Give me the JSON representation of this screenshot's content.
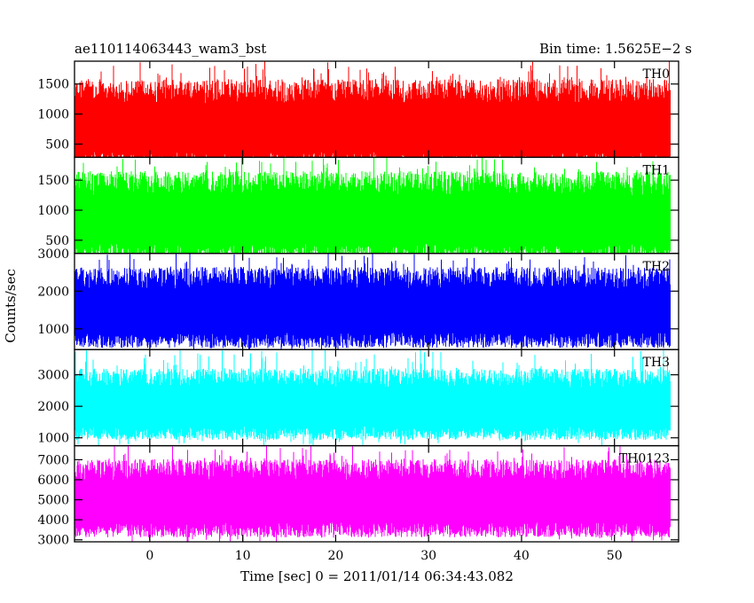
{
  "chart_data": {
    "type": "line",
    "title_left": "ae110114063443_wam3_bst",
    "title_right": "Bin time: 1.5625E−2 s",
    "xlabel": "Time [sec] 0 = 2011/01/14 06:34:43.082",
    "ylabel": "Counts/sec",
    "xlim": [
      -8.1,
      56.9
    ],
    "data_x_range": [
      -8.0,
      56.0
    ],
    "xticks": [
      0,
      10,
      20,
      30,
      40,
      50
    ],
    "grid": false,
    "panels": [
      {
        "name": "TH0",
        "color": "#ff0000",
        "ylim": [
          280,
          1880
        ],
        "yticks": [
          500,
          1000,
          1500
        ],
        "band": [
          230,
          1380
        ],
        "mean": 780,
        "spike_max": 1880
      },
      {
        "name": "TH1",
        "color": "#00ff00",
        "ylim": [
          280,
          1880
        ],
        "yticks": [
          500,
          1000,
          1500
        ],
        "band": [
          300,
          1450
        ],
        "mean": 880,
        "spike_max": 1880
      },
      {
        "name": "TH2",
        "color": "#0000ff",
        "ylim": [
          450,
          3000
        ],
        "yticks": [
          1000,
          2000,
          3000
        ],
        "band": [
          700,
          2350
        ],
        "mean": 1500,
        "spike_max": 3000
      },
      {
        "name": "TH3",
        "color": "#00ffff",
        "ylim": [
          750,
          3800
        ],
        "yticks": [
          1000,
          2000,
          3000
        ],
        "band": [
          1150,
          2900
        ],
        "mean": 2050,
        "spike_max": 3800
      },
      {
        "name": "TH0123",
        "color": "#ff00ff",
        "ylim": [
          2900,
          7700
        ],
        "yticks": [
          3000,
          4000,
          5000,
          6000,
          7000
        ],
        "band": [
          3500,
          6500
        ],
        "mean": 5000,
        "spike_max": 7700
      }
    ]
  }
}
